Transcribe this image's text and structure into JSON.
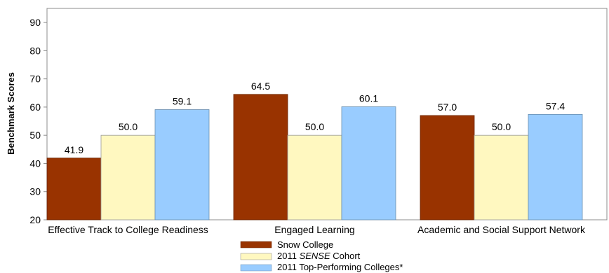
{
  "chart_data": {
    "type": "bar",
    "ylabel": "Benchmark Scores",
    "ylim": [
      20,
      95
    ],
    "yticks": [
      20,
      30,
      40,
      50,
      60,
      70,
      80,
      90
    ],
    "grid": false,
    "legend_position": "bottom",
    "categories": [
      "Effective Track to College Readiness",
      "Engaged Learning",
      "Academic and Social Support Network"
    ],
    "series": [
      {
        "name": "Snow College",
        "color": "#993300",
        "values": [
          41.9,
          64.5,
          57.0
        ],
        "labels": [
          "41.9",
          "64.5",
          "57.0"
        ]
      },
      {
        "name_prefix": "2011 ",
        "name_italic": "SENSE",
        "name_suffix": " Cohort",
        "color": "#FFF8C0",
        "values": [
          50.0,
          50.0,
          50.0
        ],
        "labels": [
          "50.0",
          "50.0",
          "50.0"
        ]
      },
      {
        "name": "2011 Top-Performing Colleges*",
        "color": "#99CCFF",
        "values": [
          59.1,
          60.1,
          57.4
        ],
        "labels": [
          "59.1",
          "60.1",
          "57.4"
        ]
      }
    ]
  }
}
